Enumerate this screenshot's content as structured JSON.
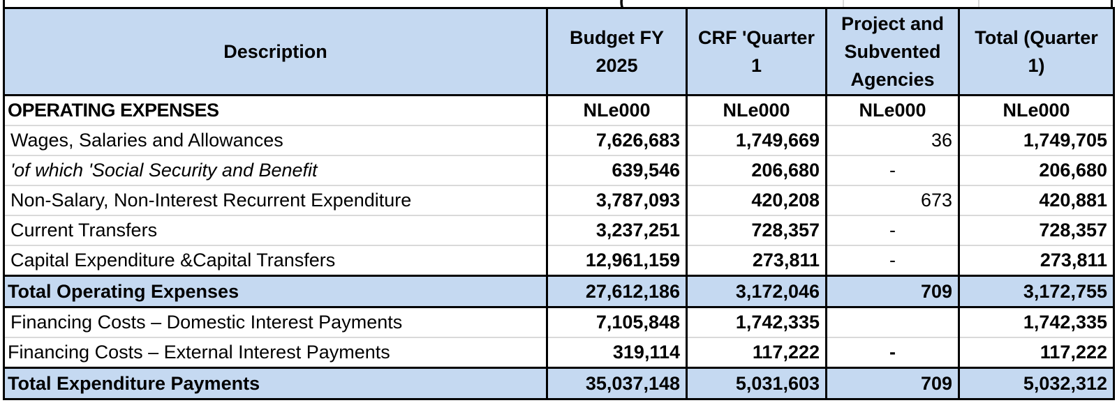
{
  "table": {
    "headers": [
      "Description",
      "Budget FY 2025",
      "CRF 'Quarter 1",
      "Project and Subvented Agencies",
      "Total (Quarter 1)"
    ],
    "units": {
      "label": "OPERATING EXPENSES",
      "values": [
        "NLe000",
        "NLe000",
        "NLe000",
        "NLe000"
      ]
    },
    "rows": [
      {
        "label": "Wages, Salaries and Allowances",
        "values": [
          "7,626,683",
          "1,749,669",
          "36",
          "1,749,705"
        ]
      },
      {
        "label": "'of which 'Social Security and Benefit",
        "values": [
          "639,546",
          "206,680",
          "-",
          "206,680"
        ]
      },
      {
        "label": "Non-Salary, Non-Interest Recurrent Expenditure",
        "values": [
          "3,787,093",
          "420,208",
          "673",
          "420,881"
        ]
      },
      {
        "label": "Current Transfers",
        "values": [
          "3,237,251",
          "728,357",
          "-",
          "728,357"
        ]
      },
      {
        "label": "Capital Expenditure &Capital Transfers",
        "values": [
          "12,961,159",
          "273,811",
          "-",
          "273,811"
        ]
      }
    ],
    "total_operating": {
      "label": "Total Operating Expenses",
      "values": [
        "27,612,186",
        "3,172,046",
        "709",
        "3,172,755"
      ]
    },
    "financing": [
      {
        "label": "Financing Costs – Domestic Interest Payments",
        "values": [
          "7,105,848",
          "1,742,335",
          "",
          "1,742,335"
        ]
      },
      {
        "label": "Financing Costs – External Interest Payments",
        "values": [
          "319,114",
          "117,222",
          "-",
          "117,222"
        ]
      }
    ],
    "total_expenditure": {
      "label": "Total Expenditure Payments",
      "values": [
        "35,037,148",
        "5,031,603",
        "709",
        "5,032,312"
      ]
    }
  }
}
